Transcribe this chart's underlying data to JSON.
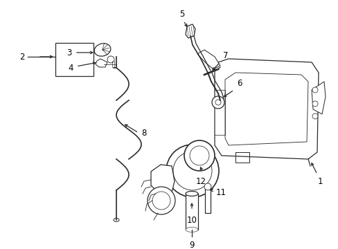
{
  "background_color": "#ffffff",
  "line_color": "#2a2a2a",
  "text_color": "#000000",
  "label_fontsize": 7.5,
  "fig_width": 4.89,
  "fig_height": 3.6,
  "dpi": 100
}
